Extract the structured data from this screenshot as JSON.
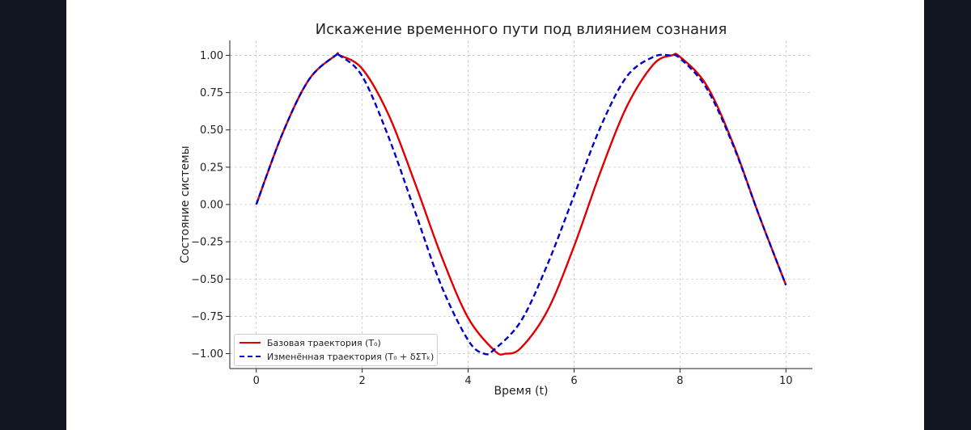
{
  "chart_data": {
    "type": "line",
    "title": "Искажение временного пути под влиянием сознания",
    "xlabel": "Время (t)",
    "ylabel": "Состояние системы",
    "xlim": [
      -0.5,
      10.5
    ],
    "ylim": [
      -1.1,
      1.1
    ],
    "x_ticks": [
      "0",
      "2",
      "4",
      "6",
      "8",
      "10"
    ],
    "y_ticks": [
      "1.00",
      "0.75",
      "0.50",
      "0.25",
      "0.00",
      "−0.25",
      "−0.50",
      "−0.75",
      "−1.00"
    ],
    "grid": true,
    "legend_position": "lower-left",
    "series": [
      {
        "name": "Базовая траектория (T₀)",
        "color": "#e00000",
        "style": "solid",
        "x": [
          0,
          0.5,
          1,
          1.5,
          1.57,
          2,
          2.5,
          3,
          3.5,
          4,
          4.5,
          4.71,
          5,
          5.5,
          6,
          6.5,
          7,
          7.5,
          7.85,
          8,
          8.5,
          9,
          9.5,
          10
        ],
        "y": [
          0,
          0.48,
          0.84,
          1.0,
          1.0,
          0.91,
          0.6,
          0.14,
          -0.35,
          -0.76,
          -0.98,
          -1.0,
          -0.96,
          -0.71,
          -0.28,
          0.22,
          0.66,
          0.94,
          1.0,
          0.99,
          0.8,
          0.41,
          -0.08,
          -0.54
        ]
      },
      {
        "name": "Изменённая траектория (T₀ + δΣTₖ)",
        "color": "#0000cc",
        "style": "dashed",
        "x": [
          0,
          0.5,
          1,
          1.5,
          1.57,
          2,
          2.5,
          3,
          3.5,
          4,
          4.3,
          4.5,
          5,
          5.5,
          6,
          6.5,
          7,
          7.5,
          7.8,
          8,
          8.5,
          9,
          9.5,
          10
        ],
        "y": [
          0,
          0.48,
          0.84,
          1.0,
          1.0,
          0.86,
          0.45,
          -0.05,
          -0.55,
          -0.91,
          -1.0,
          -0.97,
          -0.78,
          -0.4,
          0.06,
          0.52,
          0.86,
          0.99,
          1.0,
          0.98,
          0.78,
          0.4,
          -0.08,
          -0.54
        ]
      }
    ]
  }
}
